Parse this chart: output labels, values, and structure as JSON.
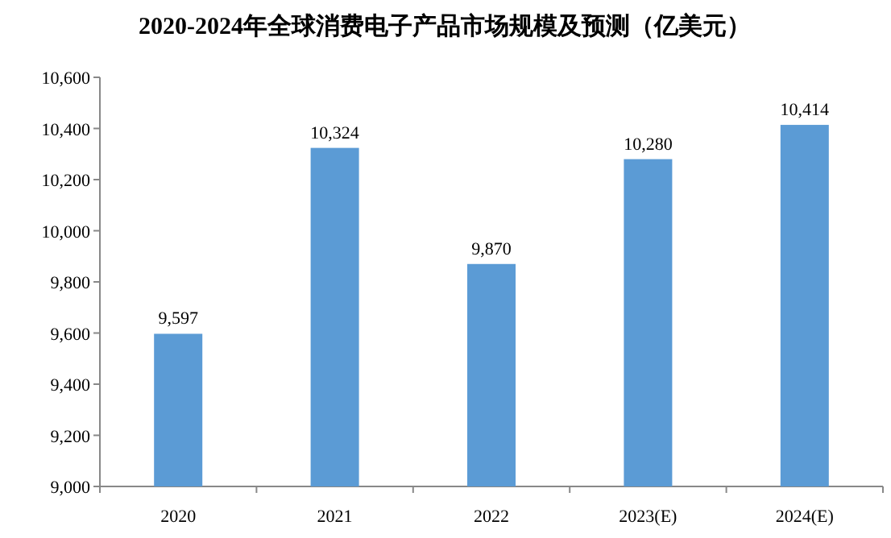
{
  "chart_data": {
    "type": "bar",
    "title": "2020-2024年全球消费电子产品市场规模及预测（亿美元）",
    "categories": [
      "2020",
      "2021",
      "2022",
      "2023(E)",
      "2024(E)"
    ],
    "values": [
      9597,
      10324,
      9870,
      10280,
      10414
    ],
    "value_labels": [
      "9,597",
      "10,324",
      "9,870",
      "10,280",
      "10,414"
    ],
    "color": "#5b9bd5",
    "ylim": [
      9000,
      10600
    ],
    "yticks": [
      {
        "value": 9000,
        "label": "9,000"
      },
      {
        "value": 9200,
        "label": "9,200"
      },
      {
        "value": 9400,
        "label": "9,400"
      },
      {
        "value": 9600,
        "label": "9,600"
      },
      {
        "value": 9800,
        "label": "9,800"
      },
      {
        "value": 10000,
        "label": "10,000"
      },
      {
        "value": 10200,
        "label": "10,200"
      },
      {
        "value": 10400,
        "label": "10,400"
      },
      {
        "value": 10600,
        "label": "10,600"
      }
    ],
    "grid": false
  }
}
